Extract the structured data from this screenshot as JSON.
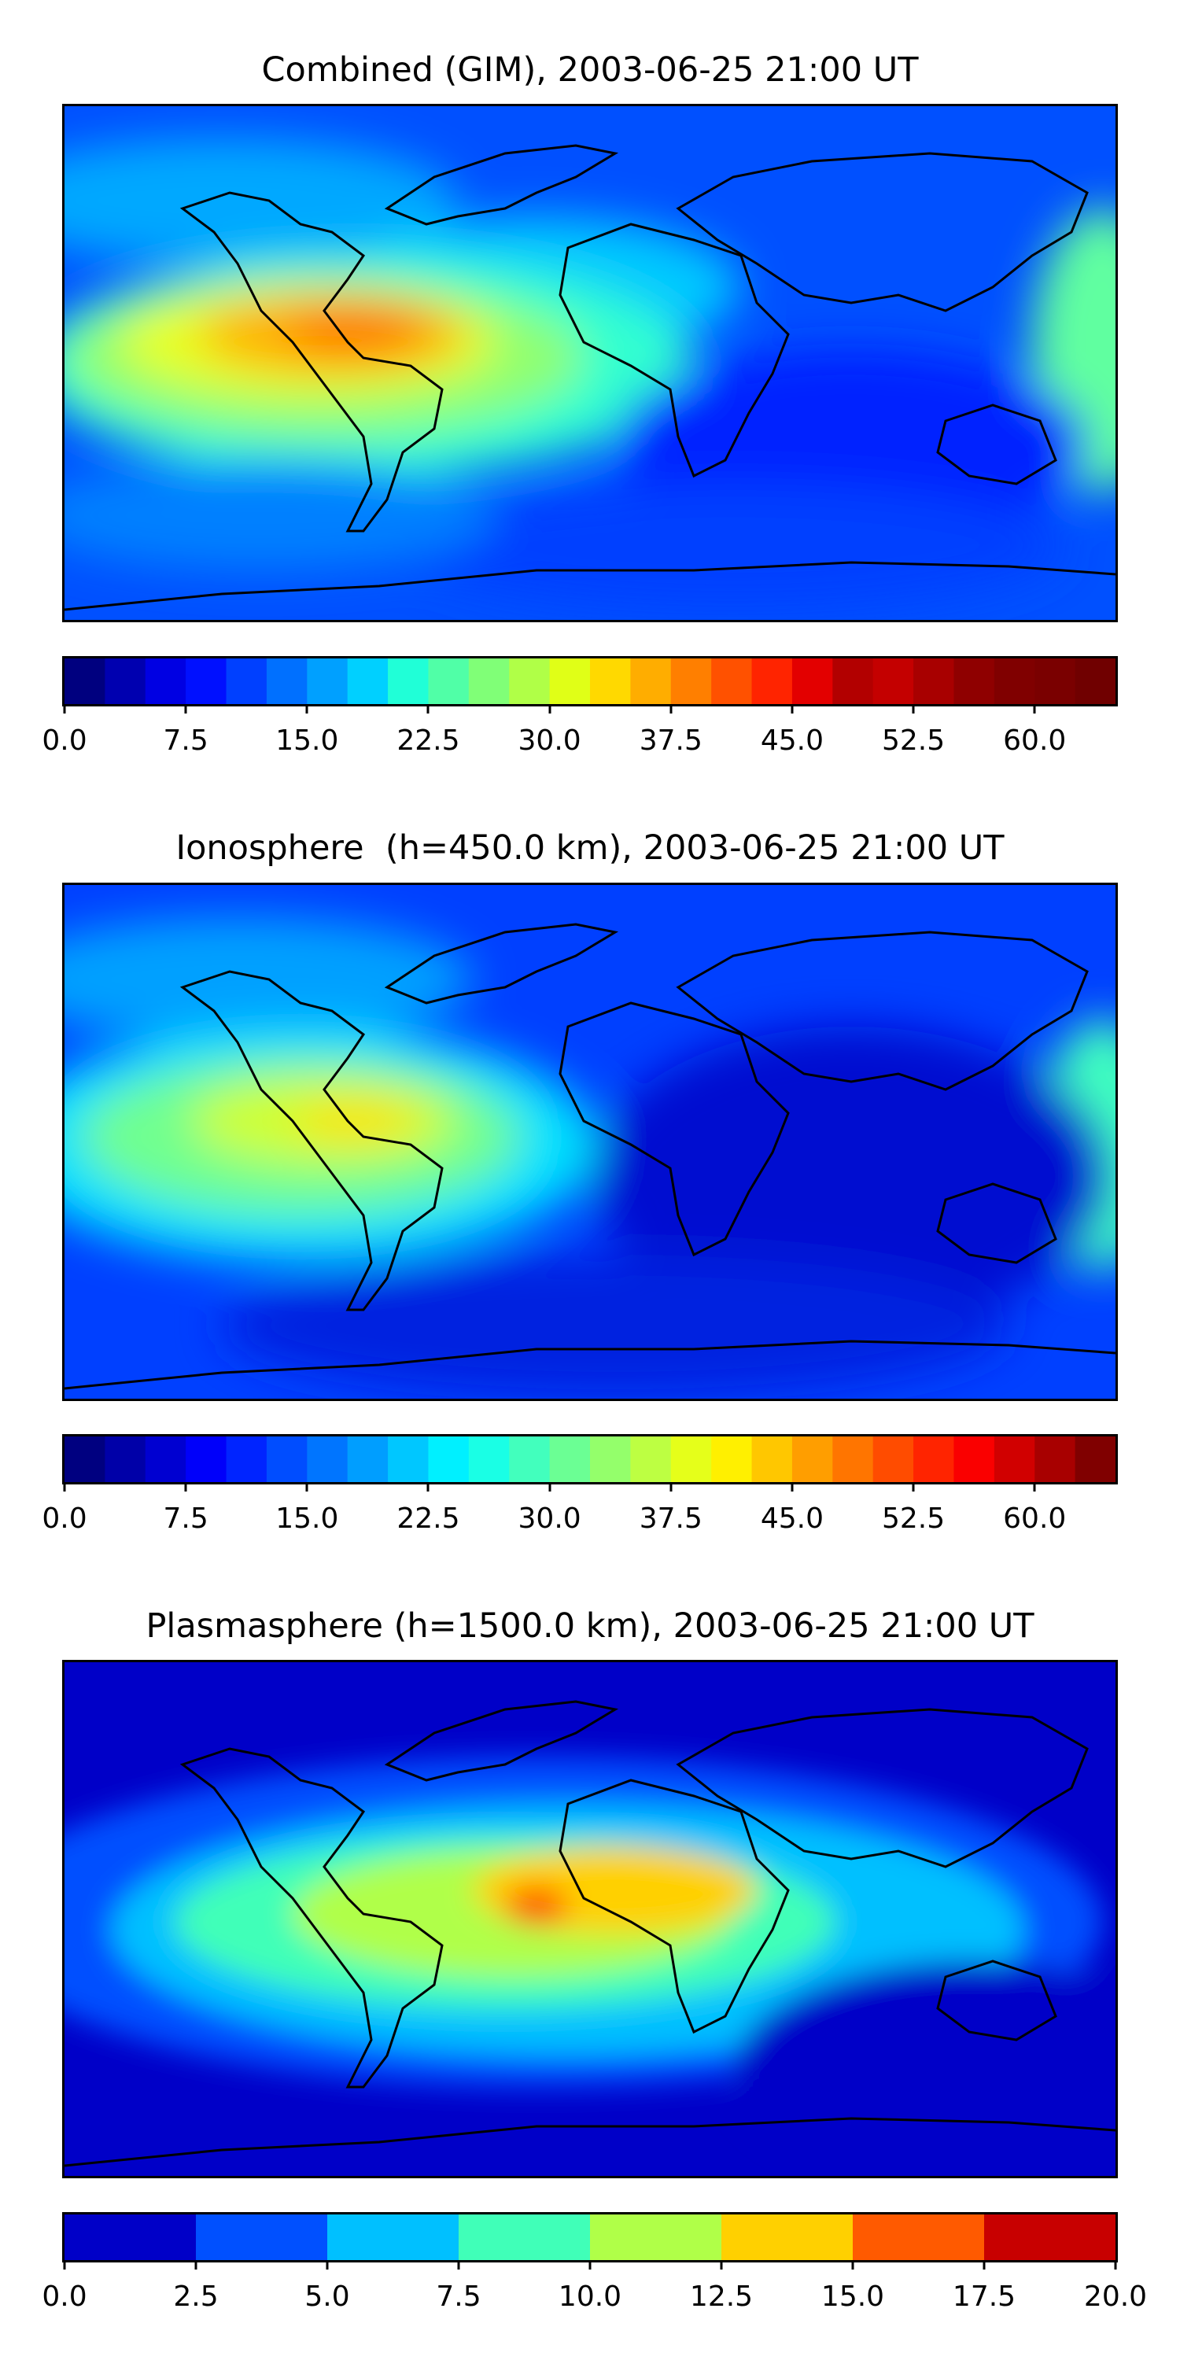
{
  "panels": [
    {
      "title": "Combined (GIM), 2003-06-25 21:00 UT",
      "colormap": "jet",
      "levels": [
        0.0,
        2.5,
        5.0,
        7.5,
        10.0,
        12.5,
        15.0,
        17.5,
        20.0,
        22.5,
        25.0,
        27.5,
        30.0,
        32.5,
        35.0,
        37.5,
        40.0,
        42.5,
        45.0,
        47.5,
        50.0,
        52.5,
        55.0,
        57.5,
        60.0,
        62.5,
        65.0
      ],
      "ticks": [
        "0.0",
        "7.5",
        "15.0",
        "22.5",
        "30.0",
        "37.5",
        "45.0",
        "52.5",
        "60.0"
      ],
      "cbar_colors": [
        "#00007f",
        "#0000b0",
        "#0000e3",
        "#0010ff",
        "#0040ff",
        "#0070ff",
        "#00a0ff",
        "#00d0ff",
        "#20ffd7",
        "#50ffa7",
        "#80ff77",
        "#b0ff47",
        "#e0ff17",
        "#ffd900",
        "#ffad00",
        "#ff7f00",
        "#ff5100",
        "#ff2400",
        "#e30000",
        "#b20000",
        "#c40000",
        "#a80000",
        "#8f0000",
        "#800000",
        "#7a0000",
        "#700000"
      ]
    },
    {
      "title": "Ionosphere  (h=450.0 km), 2003-06-25 21:00 UT",
      "colormap": "jet",
      "levels": [
        0.0,
        2.5,
        5.0,
        7.5,
        10.0,
        12.5,
        15.0,
        17.5,
        20.0,
        22.5,
        25.0,
        27.5,
        30.0,
        32.5,
        35.0,
        37.5,
        40.0,
        42.5,
        45.0,
        47.5,
        50.0,
        52.5,
        55.0,
        57.5,
        60.0,
        62.5,
        65.0
      ],
      "ticks": [
        "0.0",
        "7.5",
        "15.0",
        "22.5",
        "30.0",
        "37.5",
        "45.0",
        "52.5",
        "60.0"
      ]
    },
    {
      "title": "Plasmasphere (h=1500.0 km), 2003-06-25 21:00 UT",
      "colormap": "jet",
      "levels": [
        0.0,
        2.5,
        5.0,
        7.5,
        10.0,
        12.5,
        15.0,
        17.5,
        20.0
      ],
      "ticks": [
        "0.0",
        "2.5",
        "5.0",
        "7.5",
        "10.0",
        "12.5",
        "15.0",
        "17.5",
        "20.0"
      ],
      "cbar_colors": [
        "#0000c8",
        "#0050ff",
        "#00c0ff",
        "#40ffb8",
        "#b0ff48",
        "#ffd000",
        "#ff5a00",
        "#c80000"
      ]
    }
  ]
}
